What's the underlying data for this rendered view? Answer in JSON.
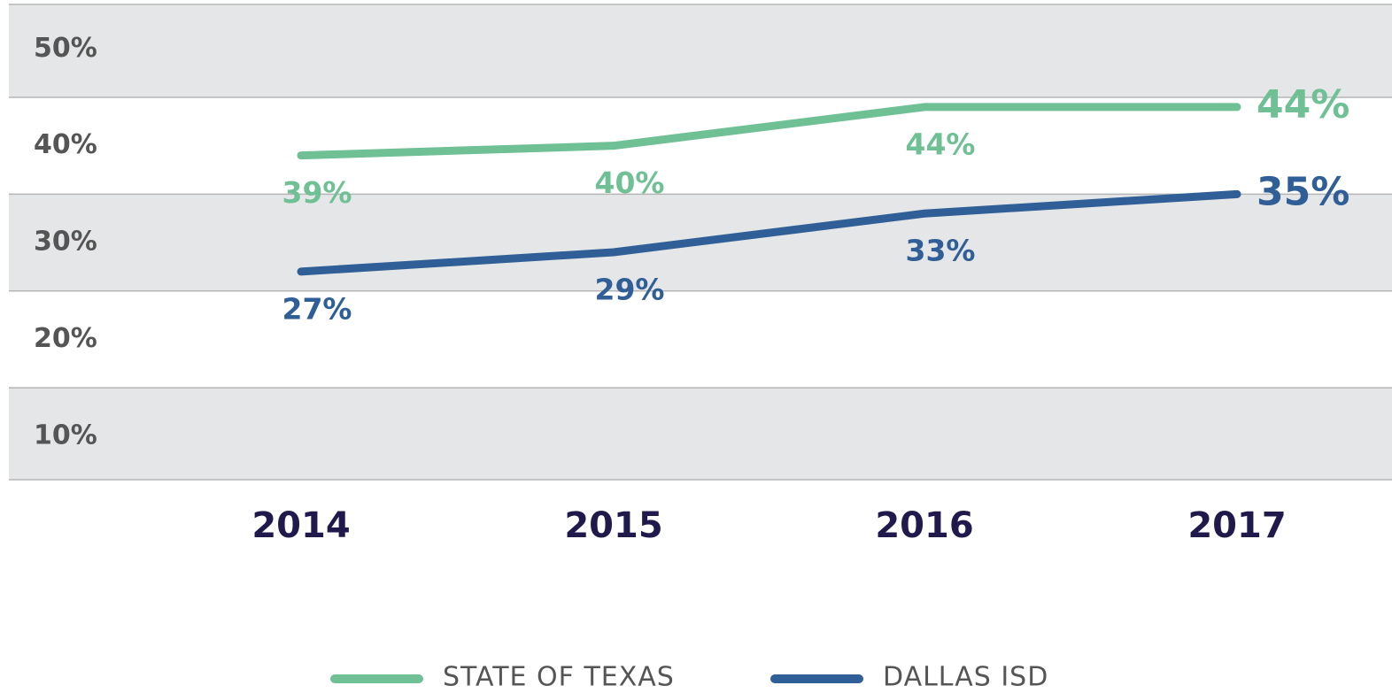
{
  "chart_data": {
    "type": "line",
    "categories": [
      "2014",
      "2015",
      "2016",
      "2017"
    ],
    "series": [
      {
        "name": "STATE OF TEXAS",
        "color": "#6fc095",
        "values": [
          39,
          40,
          44,
          44
        ],
        "value_labels": [
          "39%",
          "40%",
          "44%",
          "44%"
        ]
      },
      {
        "name": "DALLAS ISD",
        "color": "#2f5f96",
        "values": [
          27,
          29,
          33,
          35
        ],
        "value_labels": [
          "27%",
          "29%",
          "33%",
          "35%"
        ]
      }
    ],
    "ylim": [
      5.5,
      54.6
    ],
    "yticks": [
      {
        "value": 10,
        "label": "10%"
      },
      {
        "value": 20,
        "label": "20%"
      },
      {
        "value": 30,
        "label": "30%"
      },
      {
        "value": 40,
        "label": "40%"
      },
      {
        "value": 50,
        "label": "50%"
      }
    ],
    "grid": true,
    "legend": "bottom"
  }
}
